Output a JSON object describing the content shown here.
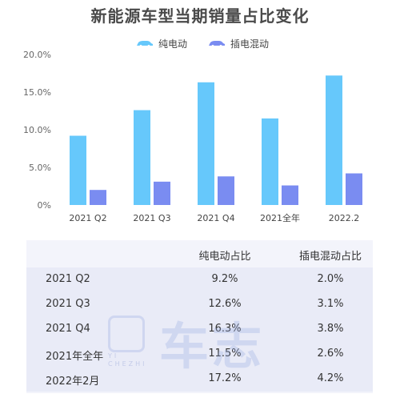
{
  "chart_data": {
    "type": "bar",
    "title": "新能源车型当期销量占比变化",
    "categories": [
      "2021 Q2",
      "2021 Q3",
      "2021 Q4",
      "2021全年",
      "2022.2"
    ],
    "series": [
      {
        "name": "纯电动",
        "values": [
          9.2,
          12.6,
          16.3,
          11.5,
          17.2
        ],
        "color": "#66c8fb"
      },
      {
        "name": "插电混动",
        "values": [
          2.0,
          3.1,
          3.8,
          2.6,
          4.2
        ],
        "color": "#7a8cf1"
      }
    ],
    "yticks": [
      "0%",
      "5.0%",
      "10.0%",
      "15.0%",
      "20.0%"
    ],
    "ylim": [
      0,
      20
    ],
    "grid": false,
    "legend": "top-center"
  },
  "table": {
    "headers": [
      "",
      "纯电动占比",
      "插电混动占比"
    ],
    "rows": [
      [
        "2021 Q2",
        "9.2%",
        "2.0%"
      ],
      [
        "2021 Q3",
        "12.6%",
        "3.1%"
      ],
      [
        "2021 Q4",
        "16.3%",
        "3.8%"
      ],
      [
        "2021年全年",
        "11.5%",
        "2.6%"
      ],
      [
        "2022年2月",
        "17.2%",
        "4.2%"
      ]
    ]
  },
  "watermark": {
    "brand": "车志",
    "sub1": "YI",
    "sub2": "CHEZHI",
    "icon": "yi-logo-icon"
  }
}
